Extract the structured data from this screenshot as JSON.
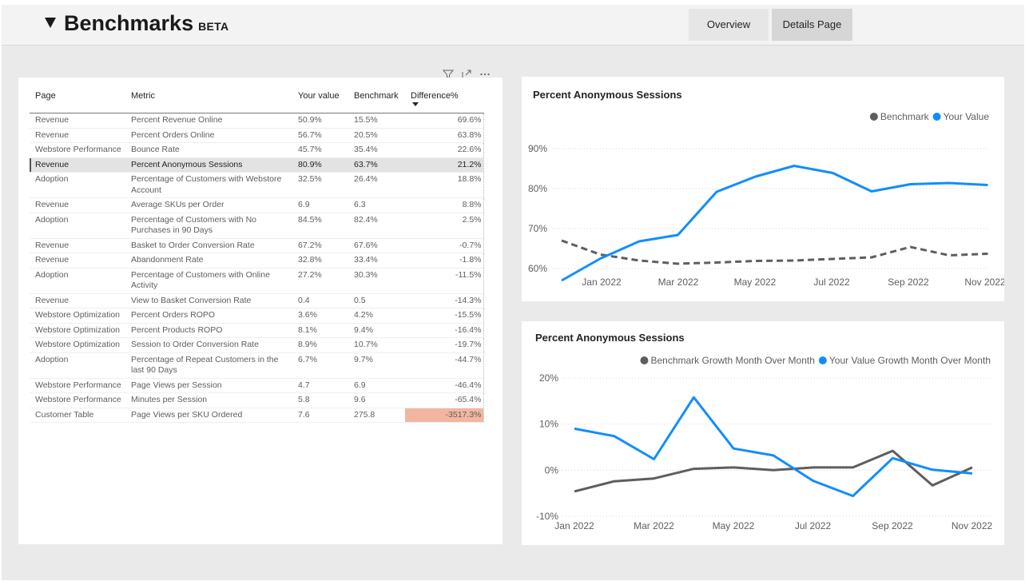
{
  "header": {
    "title": "Benchmarks",
    "badge": "BETA",
    "collapse_icon": "triangle-down-icon"
  },
  "nav": {
    "overview_label": "Overview",
    "details_label": "Details Page"
  },
  "table": {
    "columns": [
      "Page",
      "Metric",
      "Your value",
      "Benchmark",
      "Difference%"
    ],
    "sorted_column": "Difference%",
    "rows": [
      {
        "page": "Revenue",
        "metric": "Percent Revenue Online",
        "your_value": "50.9%",
        "benchmark": "15.5%",
        "difference": "69.6%"
      },
      {
        "page": "Revenue",
        "metric": "Percent Orders Online",
        "your_value": "56.7%",
        "benchmark": "20.5%",
        "difference": "63.8%"
      },
      {
        "page": "Webstore Performance",
        "metric": "Bounce Rate",
        "your_value": "45.7%",
        "benchmark": "35.4%",
        "difference": "22.6%"
      },
      {
        "page": "Revenue",
        "metric": "Percent Anonymous Sessions",
        "your_value": "80.9%",
        "benchmark": "63.7%",
        "difference": "21.2%",
        "selected": true
      },
      {
        "page": "Adoption",
        "metric": "Percentage of Customers with Webstore Account",
        "your_value": "32.5%",
        "benchmark": "26.4%",
        "difference": "18.8%"
      },
      {
        "page": "Revenue",
        "metric": "Average SKUs per Order",
        "your_value": "6.9",
        "benchmark": "6.3",
        "difference": "8.8%"
      },
      {
        "page": "Adoption",
        "metric": "Percentage of Customers with No Purchases in 90 Days",
        "your_value": "84.5%",
        "benchmark": "82.4%",
        "difference": "2.5%"
      },
      {
        "page": "Revenue",
        "metric": "Basket to Order Conversion Rate",
        "your_value": "67.2%",
        "benchmark": "67.6%",
        "difference": "-0.7%"
      },
      {
        "page": "Revenue",
        "metric": "Abandonment Rate",
        "your_value": "32.8%",
        "benchmark": "33.4%",
        "difference": "-1.8%"
      },
      {
        "page": "Adoption",
        "metric": "Percentage of Customers with Online Activity",
        "your_value": "27.2%",
        "benchmark": "30.3%",
        "difference": "-11.5%"
      },
      {
        "page": "Revenue",
        "metric": "View to Basket Conversion Rate",
        "your_value": "0.4",
        "benchmark": "0.5",
        "difference": "-14.3%"
      },
      {
        "page": "Webstore Optimization",
        "metric": "Percent Orders ROPO",
        "your_value": "3.6%",
        "benchmark": "4.2%",
        "difference": "-15.5%"
      },
      {
        "page": "Webstore Optimization",
        "metric": "Percent Products ROPO",
        "your_value": "8.1%",
        "benchmark": "9.4%",
        "difference": "-16.4%"
      },
      {
        "page": "Webstore Optimization",
        "metric": "Session to Order Conversion Rate",
        "your_value": "8.9%",
        "benchmark": "10.7%",
        "difference": "-19.7%"
      },
      {
        "page": "Adoption",
        "metric": "Percentage of Repeat Customers in the last 90 Days",
        "your_value": "6.7%",
        "benchmark": "9.7%",
        "difference": "-44.7%"
      },
      {
        "page": "Webstore Performance",
        "metric": "Page Views per Session",
        "your_value": "4.7",
        "benchmark": "6.9",
        "difference": "-46.4%"
      },
      {
        "page": "Webstore Performance",
        "metric": "Minutes per Session",
        "your_value": "5.8",
        "benchmark": "9.6",
        "difference": "-65.4%"
      },
      {
        "page": "Customer Table",
        "metric": "Page Views per SKU Ordered",
        "your_value": "7.6",
        "benchmark": "275.8",
        "difference": "-3517.3%",
        "highlight": true
      }
    ]
  },
  "colors": {
    "benchmark": "#605e5c",
    "your_value": "#118dff",
    "highlight": "#f2b6a0"
  },
  "chart_data": [
    {
      "type": "line",
      "title": "Percent Anonymous Sessions",
      "x": [
        "2021-12",
        "2022-01",
        "2022-02",
        "2022-03",
        "2022-04",
        "2022-05",
        "2022-06",
        "2022-07",
        "2022-08",
        "2022-09",
        "2022-10",
        "2022-11"
      ],
      "x_tick_labels": [
        "Jan 2022",
        "Mar 2022",
        "May 2022",
        "Jul 2022",
        "Sep 2022",
        "Nov 2022"
      ],
      "y_tick_labels": [
        "60%",
        "70%",
        "80%",
        "90%"
      ],
      "ylim": [
        56,
        92
      ],
      "legend": "top-right",
      "series": [
        {
          "name": "Benchmark",
          "style": "dashed",
          "color": "#605e5c",
          "values": [
            67.0,
            63.5,
            62.0,
            61.2,
            61.5,
            61.9,
            62.0,
            62.4,
            62.8,
            65.4,
            63.3,
            63.7
          ]
        },
        {
          "name": "Your Value",
          "style": "solid",
          "color": "#118dff",
          "values": [
            57.0,
            62.5,
            66.8,
            68.4,
            79.2,
            83.0,
            85.7,
            83.9,
            79.3,
            81.1,
            81.4,
            80.9
          ]
        }
      ]
    },
    {
      "type": "line",
      "title": "Percent Anonymous Sessions",
      "x": [
        "2022-01",
        "2022-02",
        "2022-03",
        "2022-04",
        "2022-05",
        "2022-06",
        "2022-07",
        "2022-08",
        "2022-09",
        "2022-10",
        "2022-11"
      ],
      "x_tick_labels": [
        "Jan 2022",
        "Mar 2022",
        "May 2022",
        "Jul 2022",
        "Sep 2022",
        "Nov 2022"
      ],
      "y_tick_labels": [
        "-10%",
        "0%",
        "10%",
        "20%"
      ],
      "ylim": [
        -10,
        20
      ],
      "legend": "top-right",
      "series": [
        {
          "name": "Benchmark Growth Month Over Month",
          "style": "solid",
          "color": "#605e5c",
          "values": [
            -4.6,
            -2.4,
            -1.8,
            0.3,
            0.6,
            0.0,
            0.6,
            0.6,
            4.2,
            -3.3,
            0.6
          ]
        },
        {
          "name": "Your Value Growth Month Over Month",
          "style": "solid",
          "color": "#118dff",
          "values": [
            9.0,
            7.4,
            2.4,
            15.8,
            4.7,
            3.2,
            -2.3,
            -5.6,
            2.6,
            0.1,
            -0.7
          ]
        }
      ]
    }
  ]
}
